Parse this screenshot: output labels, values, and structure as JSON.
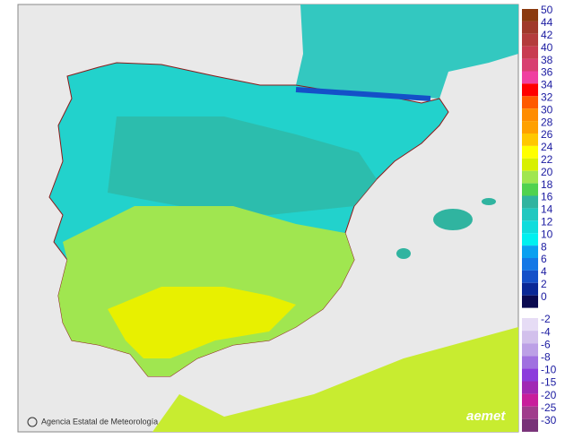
{
  "map": {
    "credit": "Agencia Estatal de Meteorología",
    "logo": "aemet",
    "legend": {
      "positive": [
        {
          "label": 50,
          "color": "#8b3a0f"
        },
        {
          "label": 44,
          "color": "#a0392a"
        },
        {
          "label": 42,
          "color": "#b43c3c"
        },
        {
          "label": 40,
          "color": "#c83c50"
        },
        {
          "label": 38,
          "color": "#d84070"
        },
        {
          "label": 36,
          "color": "#f040a0"
        },
        {
          "label": 34,
          "color": "#ff0000"
        },
        {
          "label": 32,
          "color": "#ff5a00"
        },
        {
          "label": 30,
          "color": "#ff8c00"
        },
        {
          "label": 28,
          "color": "#ffa000"
        },
        {
          "label": 26,
          "color": "#ffc800"
        },
        {
          "label": 24,
          "color": "#ffff00"
        },
        {
          "label": 22,
          "color": "#d8f000"
        },
        {
          "label": 20,
          "color": "#a0e650"
        },
        {
          "label": 18,
          "color": "#50d250"
        },
        {
          "label": 16,
          "color": "#30b4a0"
        },
        {
          "label": 14,
          "color": "#20c8c0"
        },
        {
          "label": 12,
          "color": "#10dcdc"
        },
        {
          "label": 10,
          "color": "#00f0f0"
        },
        {
          "label": 8,
          "color": "#0aa0f0"
        },
        {
          "label": 6,
          "color": "#1478e6"
        },
        {
          "label": 4,
          "color": "#1450c8"
        },
        {
          "label": 2,
          "color": "#0a2896"
        },
        {
          "label": 0,
          "color": "#0a0a50"
        }
      ],
      "negative": [
        {
          "label": -2,
          "color": "#e6dcf5"
        },
        {
          "label": -4,
          "color": "#d2c0ec"
        },
        {
          "label": -6,
          "color": "#bca0e6"
        },
        {
          "label": -8,
          "color": "#a070e0"
        },
        {
          "label": -10,
          "color": "#8c3cdc"
        },
        {
          "label": -15,
          "color": "#a028b4"
        },
        {
          "label": -20,
          "color": "#c81e9b"
        },
        {
          "label": -25,
          "color": "#a03c8c"
        },
        {
          "label": -30,
          "color": "#783278"
        }
      ]
    }
  }
}
